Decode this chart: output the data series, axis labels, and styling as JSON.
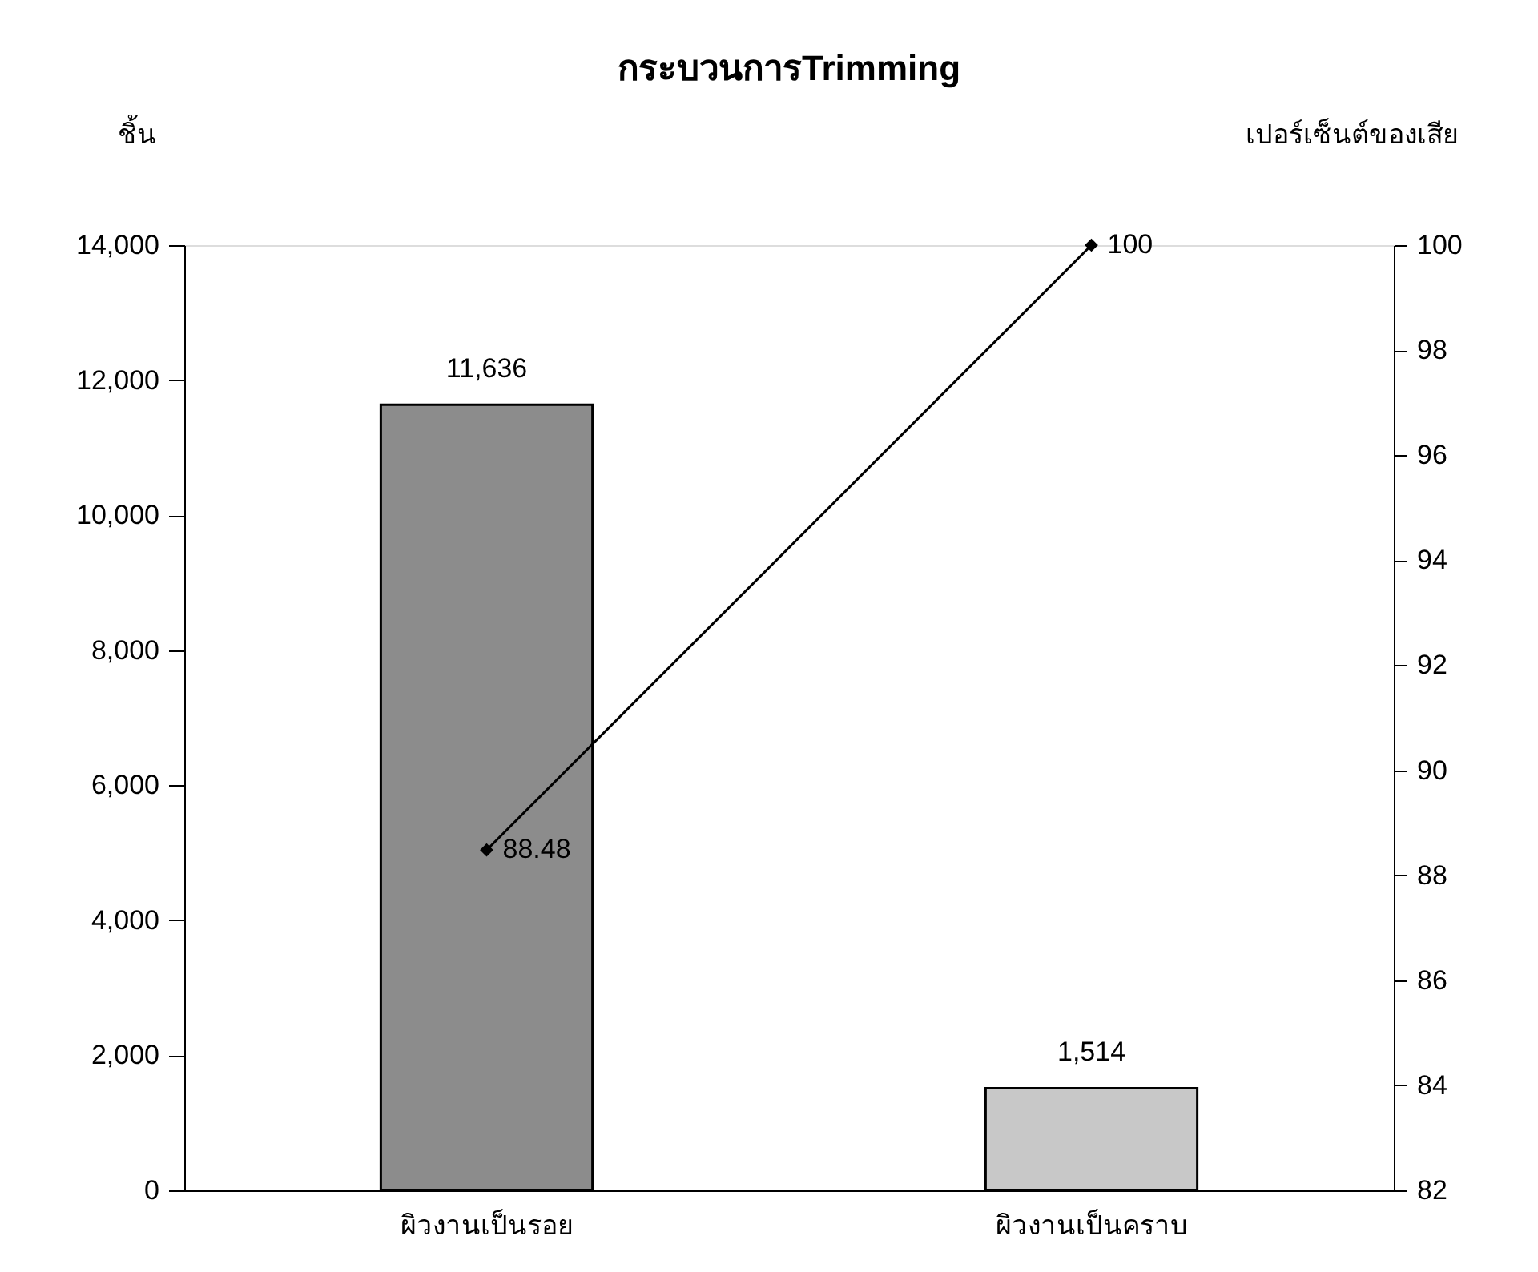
{
  "chart_data": {
    "type": "bar",
    "title": "กระบวนการTrimming",
    "ylabel": "ชิ้น",
    "y2label": "เปอร์เซ็นต์ของเสีย",
    "categories": [
      "ผิวงานเป็นรอย",
      "ผิวงานเป็นคราบ"
    ],
    "series": [
      {
        "values": [
          11636,
          1514
        ],
        "colors": [
          "#8c8c8c",
          "#c8c8c8"
        ],
        "value_labels": [
          "11,636",
          "1,514"
        ]
      },
      {
        "type": "line",
        "axis": "y2",
        "color": "#000000",
        "marker": "diamond",
        "values": [
          88.48,
          100
        ],
        "value_labels": [
          "88.48",
          "100"
        ]
      }
    ],
    "ylim": [
      0,
      14000
    ],
    "yticks": [
      {
        "value": 0,
        "label": "0"
      },
      {
        "value": 2000,
        "label": "2,000"
      },
      {
        "value": 4000,
        "label": "4,000"
      },
      {
        "value": 6000,
        "label": "6,000"
      },
      {
        "value": 8000,
        "label": "8,000"
      },
      {
        "value": 10000,
        "label": "10,000"
      },
      {
        "value": 12000,
        "label": "12,000"
      },
      {
        "value": 14000,
        "label": "14,000"
      }
    ],
    "y2lim": [
      82,
      100
    ],
    "y2ticks": [
      82,
      84,
      86,
      88,
      90,
      92,
      94,
      96,
      98,
      100
    ],
    "grid": false,
    "legend": false
  }
}
